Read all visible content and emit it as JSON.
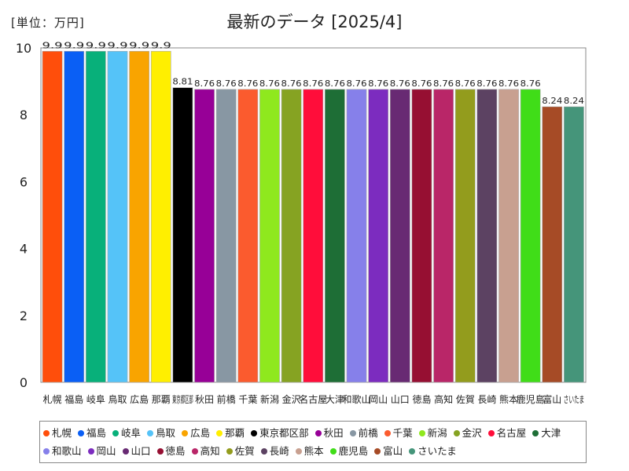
{
  "header": {
    "unit": "[単位：万円]",
    "title": "最新のデータ [2025/4]"
  },
  "chart_data": {
    "type": "bar",
    "title": "最新のデータ [2025/4]",
    "unit_label": "[単位：万円]",
    "ylim": [
      0,
      10
    ],
    "yticks": [
      "0",
      "2",
      "4",
      "6",
      "8",
      "10"
    ],
    "grid": false,
    "legend_position": "bottom",
    "categories": [
      "札幌",
      "福島",
      "岐阜",
      "鳥取",
      "広島",
      "那覇",
      "東京都区部",
      "秋田",
      "前橋",
      "千葉",
      "新潟",
      "金沢",
      "名古屋",
      "大津",
      "和歌山",
      "岡山",
      "山口",
      "徳島",
      "高知",
      "佐賀",
      "長崎",
      "熊本",
      "鹿児島",
      "富山",
      "さいたま"
    ],
    "values": [
      9.9,
      9.9,
      9.9,
      9.9,
      9.9,
      9.9,
      8.81,
      8.76,
      8.76,
      8.76,
      8.76,
      8.76,
      8.76,
      8.76,
      8.76,
      8.76,
      8.76,
      8.76,
      8.76,
      8.76,
      8.76,
      8.76,
      8.76,
      8.24,
      8.24
    ],
    "value_labels": [
      "9.9",
      "9.9",
      "9.9",
      "9.9",
      "9.9",
      "9.9",
      "8.81",
      "8.76",
      "8.76",
      "8.76",
      "8.76",
      "8.76",
      "8.76",
      "8.76",
      "8.76",
      "8.76",
      "8.76",
      "8.76",
      "8.76",
      "8.76",
      "8.76",
      "8.76",
      "8.76",
      "8.24",
      "8.24"
    ],
    "colors": [
      "#ff4e0b",
      "#0a5ff5",
      "#08b07a",
      "#55c3f8",
      "#f9a400",
      "#ffef00",
      "#000000",
      "#970097",
      "#8897a3",
      "#fb5b2e",
      "#8fe81e",
      "#86a322",
      "#ff0d3a",
      "#1e6e36",
      "#8680ea",
      "#7c2cbf",
      "#682a73",
      "#960f32",
      "#b92668",
      "#939c1d",
      "#5c4262",
      "#c8a090",
      "#40dd18",
      "#a64b26",
      "#45957a"
    ]
  }
}
